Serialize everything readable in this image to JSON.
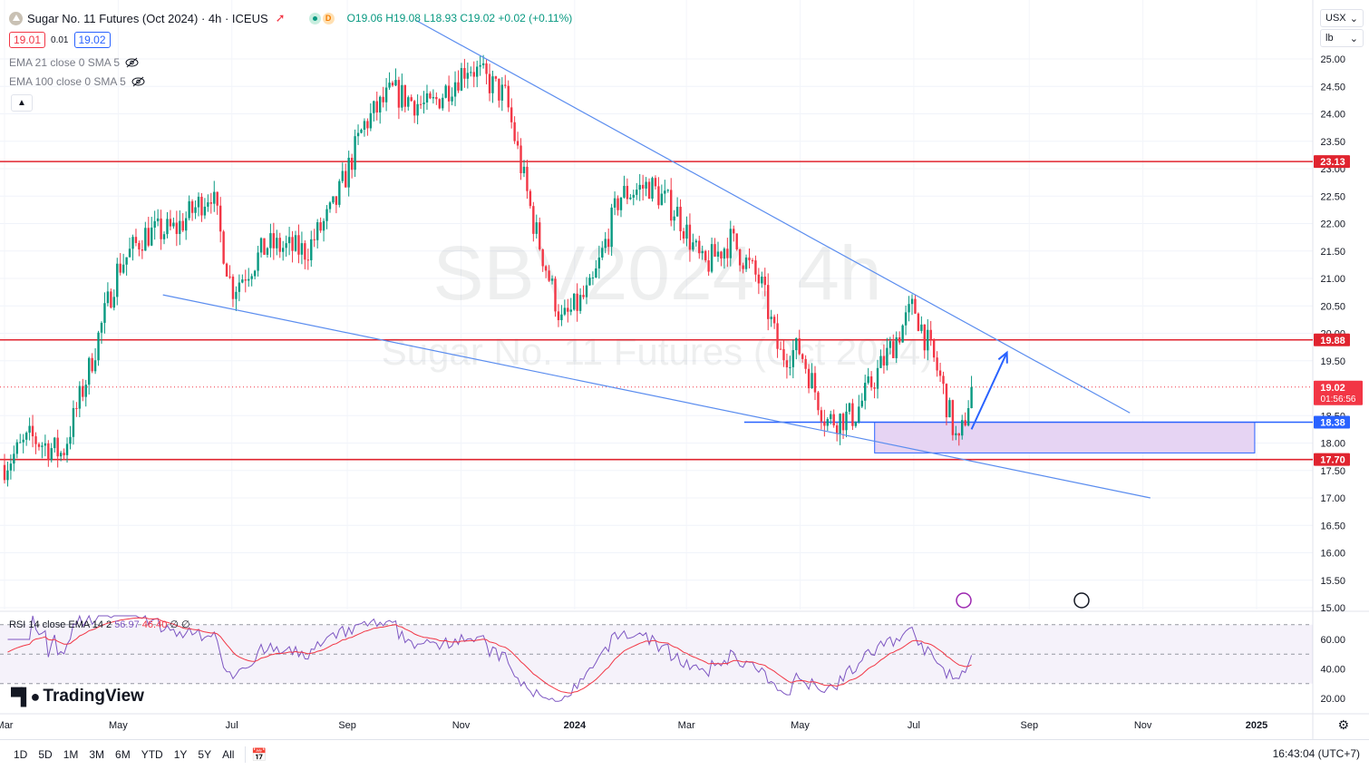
{
  "header": {
    "title": "Sugar No. 11 Futures (Oct 2024) · 4h · ICEUS",
    "dot_letter": "D",
    "ohlc": {
      "o": "O19.06",
      "h": "H19.08",
      "l": "L18.93",
      "c": "C19.02",
      "chg": "+0.02 (+0.11%)"
    }
  },
  "quote": {
    "sell": "19.01",
    "spread": "0.01",
    "buy": "19.02"
  },
  "indicators": [
    {
      "label": "EMA 21 close 0 SMA 5"
    },
    {
      "label": "EMA 100 close 0 SMA 5"
    }
  ],
  "watermark": {
    "symbol": "SBV2024, 4h",
    "name": "Sugar No. 11 Futures (Oct 2024)"
  },
  "right_selects": {
    "currency": "USX",
    "unit": "lb"
  },
  "rsi": {
    "legend": "RSI 14 close EMA 14 2",
    "val1": "56.97",
    "val2": "46.40",
    "tail": "∅ ∅",
    "ticks": [
      "60.00",
      "40.00",
      "20.00"
    ]
  },
  "branding": {
    "logo_text": "TradingView"
  },
  "bottom": {
    "ranges": [
      "1D",
      "5D",
      "1M",
      "3M",
      "6M",
      "YTD",
      "1Y",
      "5Y",
      "All"
    ],
    "clock": "16:43:04 (UTC+7)"
  },
  "colors": {
    "up": "#089981",
    "down": "#f23645",
    "accent": "#2962ff",
    "level": "#e0242f",
    "trendline": "#5b8def",
    "zone": "#e6d4f3",
    "rsi": "#7e57c2"
  },
  "chart_data": {
    "type": "candlestick",
    "interval": "4h",
    "x_tick_labels": [
      "Mar",
      "May",
      "Jul",
      "Sep",
      "Nov",
      "2024",
      "Mar",
      "May",
      "Jul",
      "Sep",
      "Nov",
      "2025"
    ],
    "y_tick_labels": [
      "25.00",
      "24.50",
      "24.00",
      "23.50",
      "23.00",
      "22.50",
      "22.00",
      "21.50",
      "21.00",
      "20.50",
      "20.00",
      "19.50",
      "18.50",
      "18.00",
      "17.50",
      "17.00",
      "16.50",
      "16.00",
      "15.50",
      "15.00"
    ],
    "ylim": [
      15.0,
      25.0
    ],
    "last_price": {
      "value": "19.02",
      "countdown": "01:56:56"
    },
    "horizontal_levels": [
      {
        "value": "23.13",
        "color": "#e0242f"
      },
      {
        "value": "19.88",
        "color": "#e0242f"
      },
      {
        "value": "18.38",
        "color": "#2962ff"
      },
      {
        "value": "17.70",
        "color": "#e0242f"
      }
    ],
    "zone": {
      "from": 17.82,
      "to": 18.38
    },
    "price_path": [
      [
        "2023-03-01",
        17.6
      ],
      [
        "2023-03-15",
        18.1
      ],
      [
        "2023-04-01",
        17.8
      ],
      [
        "2023-04-15",
        19.3
      ],
      [
        "2023-05-01",
        21.2
      ],
      [
        "2023-05-15",
        21.8
      ],
      [
        "2023-06-01",
        21.9
      ],
      [
        "2023-06-20",
        22.6
      ],
      [
        "2023-07-01",
        20.8
      ],
      [
        "2023-07-20",
        21.6
      ],
      [
        "2023-08-10",
        21.5
      ],
      [
        "2023-08-25",
        22.3
      ],
      [
        "2023-09-10",
        23.8
      ],
      [
        "2023-09-25",
        24.4
      ],
      [
        "2023-10-15",
        24.1
      ],
      [
        "2023-11-05",
        24.9
      ],
      [
        "2023-11-25",
        24.3
      ],
      [
        "2023-12-10",
        22.0
      ],
      [
        "2023-12-25",
        20.2
      ],
      [
        "2024-01-10",
        20.8
      ],
      [
        "2024-01-25",
        22.5
      ],
      [
        "2024-02-10",
        22.7
      ],
      [
        "2024-02-25",
        22.2
      ],
      [
        "2024-03-10",
        21.2
      ],
      [
        "2024-03-25",
        21.7
      ],
      [
        "2024-04-10",
        20.9
      ],
      [
        "2024-04-20",
        19.6
      ],
      [
        "2024-05-01",
        19.7
      ],
      [
        "2024-05-15",
        18.4
      ],
      [
        "2024-05-30",
        18.5
      ],
      [
        "2024-06-15",
        19.5
      ],
      [
        "2024-07-01",
        20.5
      ],
      [
        "2024-07-15",
        19.2
      ],
      [
        "2024-07-25",
        17.9
      ],
      [
        "2024-08-01",
        19.02
      ]
    ],
    "trendlines": [
      {
        "from": [
          "2023-10-08",
          25.7
        ],
        "to": [
          "2024-10-25",
          18.55
        ]
      },
      {
        "from": [
          "2023-05-25",
          20.7
        ],
        "to": [
          "2024-11-05",
          17.0
        ]
      }
    ],
    "projection_arrow": {
      "from": [
        "2024-08-01",
        18.25
      ],
      "to": [
        "2024-08-20",
        19.65
      ]
    }
  }
}
